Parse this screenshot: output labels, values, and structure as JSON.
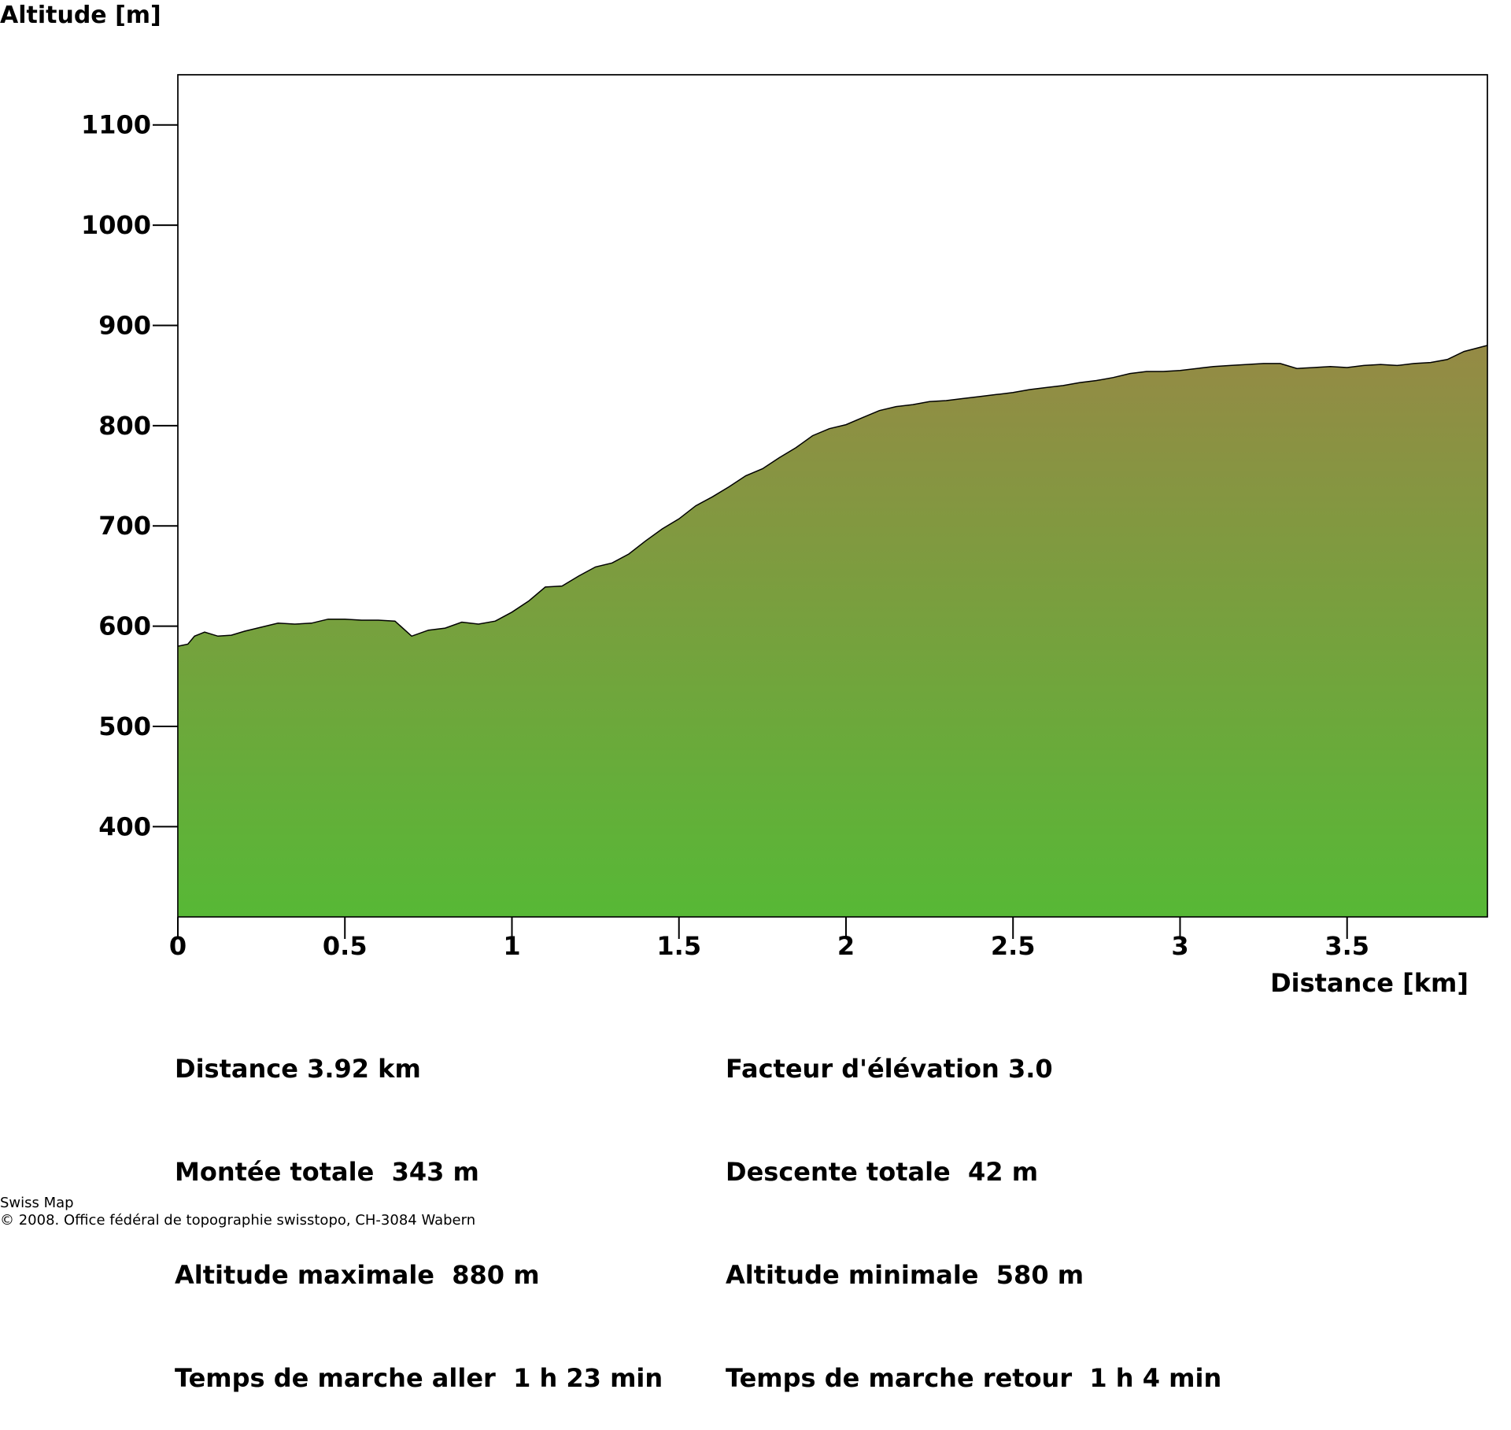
{
  "chart_data": {
    "type": "area",
    "ylabel": "Altitude [m]",
    "xlabel": "Distance [km]",
    "xlim": [
      0,
      3.92
    ],
    "ylim": [
      310,
      1150
    ],
    "xticks": [
      "0",
      "0.5",
      "1",
      "1.5",
      "2",
      "2.5",
      "3",
      "3.5"
    ],
    "yticks": [
      "400",
      "500",
      "600",
      "700",
      "800",
      "900",
      "1000",
      "1100"
    ],
    "grid": false,
    "fill_colors": {
      "top": "#958a45",
      "bottom": "#57b836"
    },
    "x": [
      0,
      0.03,
      0.05,
      0.08,
      0.12,
      0.16,
      0.2,
      0.25,
      0.3,
      0.35,
      0.4,
      0.45,
      0.5,
      0.55,
      0.6,
      0.65,
      0.7,
      0.75,
      0.8,
      0.85,
      0.9,
      0.95,
      1.0,
      1.05,
      1.1,
      1.15,
      1.2,
      1.25,
      1.3,
      1.35,
      1.4,
      1.45,
      1.5,
      1.55,
      1.6,
      1.65,
      1.7,
      1.75,
      1.8,
      1.85,
      1.9,
      1.95,
      2.0,
      2.05,
      2.1,
      2.15,
      2.2,
      2.25,
      2.3,
      2.35,
      2.4,
      2.45,
      2.5,
      2.55,
      2.6,
      2.65,
      2.7,
      2.75,
      2.8,
      2.85,
      2.9,
      2.95,
      3.0,
      3.05,
      3.1,
      3.15,
      3.2,
      3.25,
      3.3,
      3.35,
      3.4,
      3.45,
      3.5,
      3.55,
      3.6,
      3.65,
      3.7,
      3.75,
      3.8,
      3.85,
      3.92
    ],
    "y": [
      580,
      582,
      590,
      594,
      590,
      591,
      595,
      599,
      603,
      602,
      603,
      607,
      607,
      606,
      606,
      605,
      590,
      596,
      598,
      604,
      602,
      605,
      614,
      625,
      639,
      640,
      650,
      659,
      663,
      672,
      685,
      697,
      707,
      720,
      729,
      739,
      750,
      757,
      768,
      778,
      790,
      797,
      801,
      808,
      815,
      819,
      821,
      824,
      825,
      827,
      829,
      831,
      833,
      836,
      838,
      840,
      843,
      845,
      848,
      852,
      854,
      854,
      855,
      857,
      859,
      860,
      861,
      862,
      862,
      857,
      858,
      859,
      858,
      860,
      861,
      860,
      862,
      863,
      866,
      874,
      880
    ]
  },
  "stats": {
    "distance": "Distance 3.92 km",
    "montee": "Montée totale  343 m",
    "alt_max": "Altitude maximale  880 m",
    "temps_aller": "Temps de marche aller  1 h 23 min",
    "facteur": "Facteur d'élévation 3.0",
    "descente": "Descente totale  42 m",
    "alt_min": "Altitude minimale  580 m",
    "temps_retour": "Temps de marche retour  1 h 4 min"
  },
  "footer": {
    "line1": "Swiss Map",
    "line2": "© 2008. Office fédéral de topographie swisstopo, CH-3084 Wabern"
  }
}
